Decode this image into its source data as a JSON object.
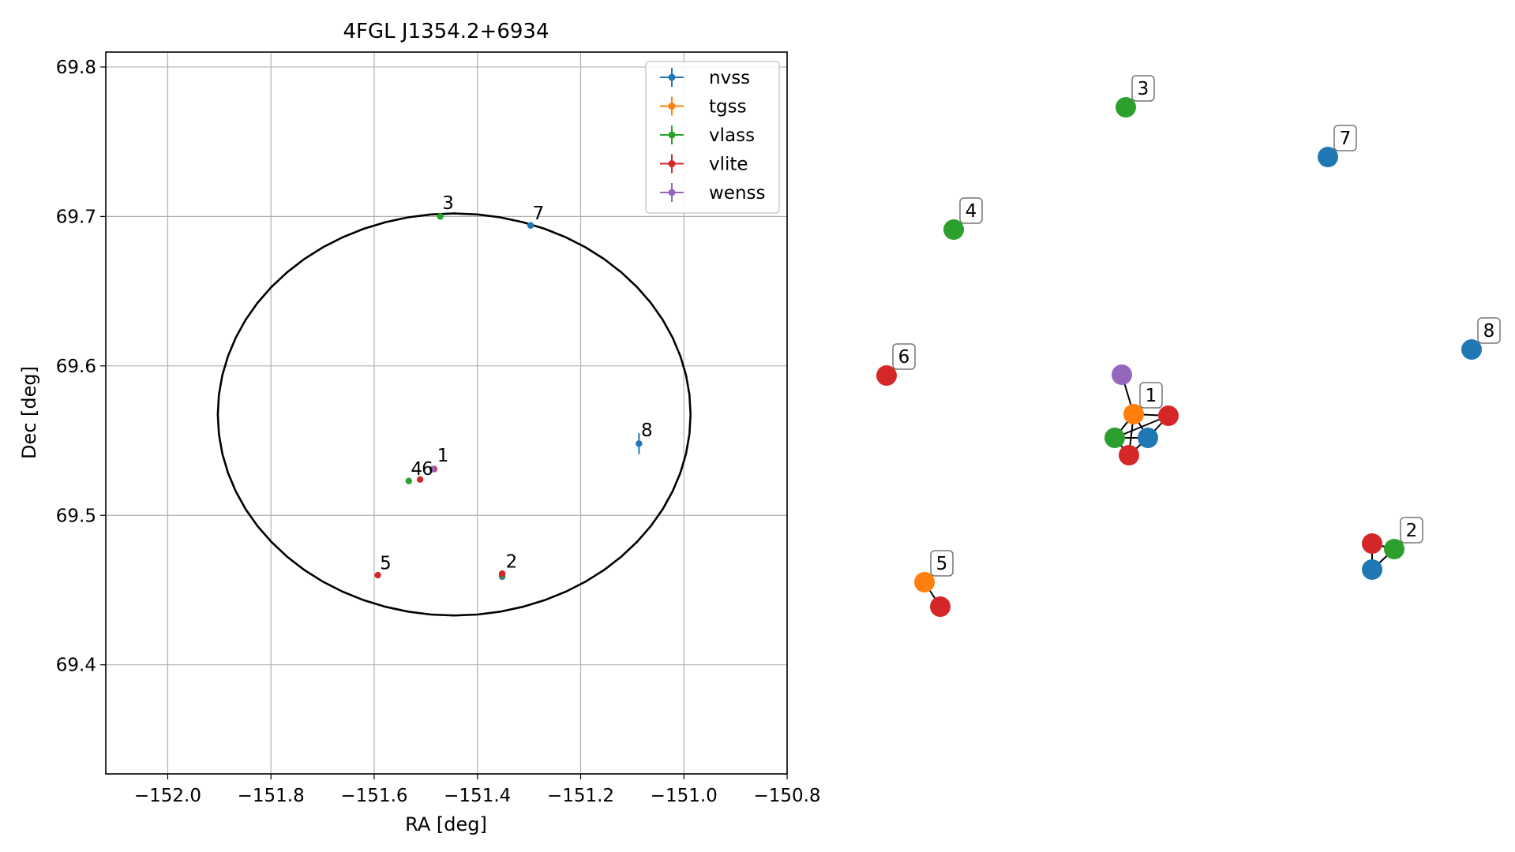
{
  "chart_data": [
    {
      "type": "scatter",
      "title": "4FGL J1354.2+6934",
      "xlabel": "RA [deg]",
      "ylabel": "Dec [deg]",
      "xlim": [
        -152.12,
        -150.8
      ],
      "ylim": [
        69.327,
        69.81
      ],
      "grid": true,
      "legend_position": "top-right",
      "x_ticks": [
        -152.0,
        -151.8,
        -151.6,
        -151.4,
        -151.2,
        -151.0,
        -150.8
      ],
      "x_tick_labels": [
        "−152.0",
        "−151.8",
        "−151.6",
        "−151.4",
        "−151.2",
        "−151.0",
        "−150.8"
      ],
      "y_ticks": [
        69.4,
        69.5,
        69.6,
        69.7,
        69.8
      ],
      "y_tick_labels": [
        "69.4",
        "69.5",
        "69.6",
        "69.7",
        "69.8"
      ],
      "ellipse": {
        "center_ra": -151.445,
        "center_dec": 69.5675,
        "semi_axis_ra": 0.458,
        "semi_axis_dec": 0.1345,
        "color": "#000000"
      },
      "series": [
        {
          "name": "nvss",
          "color": "#1f77b4",
          "points": [
            {
              "ra": -151.297,
              "dec": 69.694
            },
            {
              "ra": -151.087,
              "dec": 69.548,
              "dec_err": 0.007
            },
            {
              "ra": -151.352,
              "dec": 69.459
            }
          ]
        },
        {
          "name": "tgss",
          "color": "#ff7f0e",
          "points": [
            {
              "ra": -151.487,
              "dec": 69.531
            }
          ]
        },
        {
          "name": "vlass",
          "color": "#2ca02c",
          "points": [
            {
              "ra": -151.472,
              "dec": 69.7
            },
            {
              "ra": -151.533,
              "dec": 69.523
            },
            {
              "ra": -151.352,
              "dec": 69.46
            }
          ]
        },
        {
          "name": "vlite",
          "color": "#d62728",
          "points": [
            {
              "ra": -151.511,
              "dec": 69.524
            },
            {
              "ra": -151.593,
              "dec": 69.46
            },
            {
              "ra": -151.352,
              "dec": 69.461
            },
            {
              "ra": -151.484,
              "dec": 69.531
            }
          ]
        },
        {
          "name": "wenss",
          "color": "#9467bd",
          "points": [
            {
              "ra": -151.487,
              "dec": 69.531
            }
          ]
        }
      ],
      "annotations": [
        {
          "text": "1",
          "ra": -151.478,
          "dec": 69.536
        },
        {
          "text": "2",
          "ra": -151.345,
          "dec": 69.465
        },
        {
          "text": "3",
          "ra": -151.468,
          "dec": 69.705
        },
        {
          "text": "4",
          "ra": -151.529,
          "dec": 69.527
        },
        {
          "text": "6",
          "ra": -151.508,
          "dec": 69.527
        },
        {
          "text": "5",
          "ra": -151.589,
          "dec": 69.464
        },
        {
          "text": "7",
          "ra": -151.293,
          "dec": 69.698
        },
        {
          "text": "8",
          "ra": -151.083,
          "dec": 69.553
        }
      ]
    },
    {
      "type": "network",
      "nodes": [
        {
          "id": "g3",
          "group": "3",
          "color": "#2ca02c"
        },
        {
          "id": "b7",
          "group": "7",
          "color": "#1f77b4"
        },
        {
          "id": "g4",
          "group": "4",
          "color": "#2ca02c"
        },
        {
          "id": "b8",
          "group": "8",
          "color": "#1f77b4"
        },
        {
          "id": "r6",
          "group": "6",
          "color": "#d62728"
        },
        {
          "id": "p1",
          "group": "1",
          "color": "#9467bd"
        },
        {
          "id": "o1",
          "group": "1",
          "color": "#ff7f0e"
        },
        {
          "id": "r1",
          "group": "1",
          "color": "#d62728"
        },
        {
          "id": "g1",
          "group": "1",
          "color": "#2ca02c"
        },
        {
          "id": "b1",
          "group": "1",
          "color": "#1f77b4"
        },
        {
          "id": "r1b",
          "group": "1",
          "color": "#d62728"
        },
        {
          "id": "r2",
          "group": "2",
          "color": "#d62728"
        },
        {
          "id": "g2",
          "group": "2",
          "color": "#2ca02c"
        },
        {
          "id": "b2",
          "group": "2",
          "color": "#1f77b4"
        },
        {
          "id": "o5",
          "group": "5",
          "color": "#ff7f0e"
        },
        {
          "id": "r5",
          "group": "5",
          "color": "#d62728"
        }
      ],
      "edges": [
        [
          "p1",
          "o1"
        ],
        [
          "o1",
          "g1"
        ],
        [
          "o1",
          "b1"
        ],
        [
          "o1",
          "r1"
        ],
        [
          "o1",
          "r1b"
        ],
        [
          "g1",
          "b1"
        ],
        [
          "g1",
          "r1b"
        ],
        [
          "b1",
          "r1b"
        ],
        [
          "b1",
          "r1"
        ],
        [
          "g1",
          "r1"
        ],
        [
          "r2",
          "g2"
        ],
        [
          "r2",
          "b2"
        ],
        [
          "g2",
          "b2"
        ],
        [
          "o5",
          "r5"
        ]
      ],
      "labels": [
        {
          "text": "3",
          "node": "g3"
        },
        {
          "text": "7",
          "node": "b7"
        },
        {
          "text": "4",
          "node": "g4"
        },
        {
          "text": "8",
          "node": "b8"
        },
        {
          "text": "6",
          "node": "r6"
        },
        {
          "text": "1",
          "node": "o1"
        },
        {
          "text": "2",
          "node": "g2"
        },
        {
          "text": "5",
          "node": "o5"
        }
      ]
    }
  ]
}
